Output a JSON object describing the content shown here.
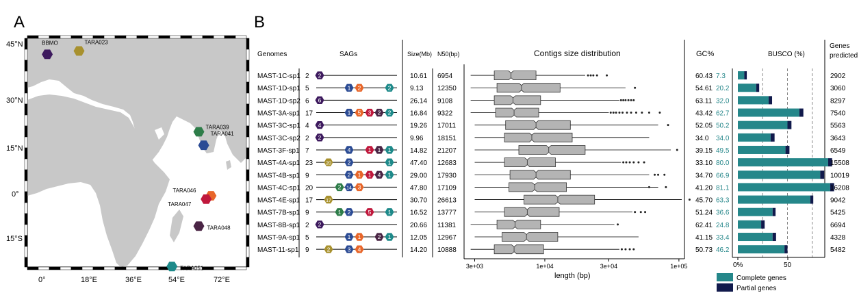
{
  "panels": {
    "a": "A",
    "b": "B"
  },
  "map": {
    "lat_labels": [
      "45°N",
      "30°N",
      "15°N",
      "0°",
      "15°S"
    ],
    "lon_labels": [
      "0°",
      "18°E",
      "36°E",
      "54°E",
      "72°E"
    ],
    "stations": [
      {
        "name": "BBMO",
        "lon": 2,
        "lat": 42,
        "color": "#3d1a5e"
      },
      {
        "name": "TARA023",
        "lon": 15,
        "lat": 43,
        "color": "#a8912e"
      },
      {
        "name": "TARA039",
        "lon": 64,
        "lat": 19,
        "color": "#2e7d49"
      },
      {
        "name": "TARA041",
        "lon": 66,
        "lat": 15,
        "color": "#2b4b94"
      },
      {
        "name": "TARA046",
        "lon": 69,
        "lat": 0,
        "color": "#e8662a"
      },
      {
        "name": "TARA047",
        "lon": 67,
        "lat": -1,
        "color": "#c0183c"
      },
      {
        "name": "TARA048",
        "lon": 64,
        "lat": -9,
        "color": "#4a2545"
      },
      {
        "name": "TARA051",
        "lon": 53,
        "lat": -21,
        "color": "#1e8a8a"
      }
    ]
  },
  "headers": {
    "genomes": "Genomes",
    "sags": "SAGs",
    "size": "Size(Mb)",
    "n50": "N50(bp)",
    "contigs": "Contigs size distribution",
    "gc": "GC%",
    "busco": "BUSCO (%)",
    "genes1": "Genes",
    "genes2": "predicted"
  },
  "axis": {
    "contig_ticks": [
      "3e+03",
      "1e+04",
      "3e+04",
      "1e+05"
    ],
    "contig_xlabel": "length  (bp)",
    "busco_ticks": [
      "0%",
      "50"
    ]
  },
  "legend": {
    "complete": "Complete genes",
    "partial": "Partial genes"
  },
  "colors": {
    "complete": "#25878a",
    "partial": "#111a4c",
    "box": "#b4b4b4"
  },
  "chart_data": {
    "type": "table",
    "columns": [
      "Genomes",
      "SAGs",
      "Size(Mb)",
      "N50(bp)",
      "Contigs size distribution",
      "GC%",
      "BUSCO (%)",
      "Genes predicted"
    ],
    "contig_axis": {
      "scale": "log",
      "range": [
        2500,
        110000
      ]
    },
    "busco_axis": {
      "range": [
        0,
        100
      ],
      "dashed_lines": [
        25,
        50,
        75
      ]
    },
    "rows": [
      {
        "genome": "MAST-1C-sp1",
        "n_sags": "2",
        "sags": [
          {
            "label": "2",
            "station": "BBMO"
          }
        ],
        "size": "10.61",
        "n50": "6954",
        "gc": "60.43",
        "busco": "7.3",
        "busco_complete": 6.5,
        "busco_partial": 2.5,
        "genes": "2902",
        "contigs": {
          "wlo": 2800,
          "q1": 4200,
          "med": 5600,
          "q3": 8600,
          "whi": 20000,
          "outliers": [
            21000,
            22000,
            23000,
            24500,
            29000
          ]
        }
      },
      {
        "genome": "MAST-1D-sp1",
        "n_sags": "5",
        "sags": [
          {
            "label": "1",
            "station": "TARA041"
          },
          {
            "label": "2",
            "station": "TARA046"
          },
          {
            "label": "2",
            "station": "TARA051"
          }
        ],
        "size": "9.13",
        "n50": "12350",
        "gc": "54.61",
        "busco": "20.2",
        "busco_complete": 18.5,
        "busco_partial": 3,
        "genes": "3060",
        "contigs": {
          "wlo": 2800,
          "q1": 4400,
          "med": 6700,
          "q3": 13000,
          "whi": 40000,
          "outliers": [
            47000
          ]
        }
      },
      {
        "genome": "MAST-1D-sp2",
        "n_sags": "6",
        "sags": [
          {
            "label": "6",
            "station": "BBMO"
          }
        ],
        "size": "26.14",
        "n50": "9108",
        "gc": "63.11",
        "busco": "32.0",
        "busco_complete": 31,
        "busco_partial": 3.5,
        "genes": "8297",
        "contigs": {
          "wlo": 2800,
          "q1": 4200,
          "med": 5800,
          "q3": 9300,
          "whi": 36000,
          "outliers": [
            37000,
            38500,
            40000,
            42000,
            44000,
            46000
          ]
        }
      },
      {
        "genome": "MAST-3A-sp1",
        "n_sags": "17",
        "sags": [
          {
            "label": "1",
            "station": "TARA041"
          },
          {
            "label": "5",
            "station": "TARA046"
          },
          {
            "label": "3",
            "station": "TARA047"
          },
          {
            "label": "2",
            "station": "TARA048"
          },
          {
            "label": "2",
            "station": "TARA051"
          }
        ],
        "size": "16.84",
        "n50": "9322",
        "gc": "43.42",
        "busco": "62.7",
        "busco_complete": 62,
        "busco_partial": 4,
        "genes": "7540",
        "contigs": {
          "wlo": 2800,
          "q1": 4300,
          "med": 5900,
          "q3": 9000,
          "whi": 30000,
          "outliers": [
            31000,
            32500,
            34000,
            36000,
            38000,
            41000,
            44000,
            48000,
            53000,
            60000,
            72000
          ]
        }
      },
      {
        "genome": "MAST-3C-sp1",
        "n_sags": "4",
        "sags": [
          {
            "label": "4",
            "station": "BBMO"
          }
        ],
        "size": "19.26",
        "n50": "17011",
        "gc": "52.05",
        "busco": "50.2",
        "busco_complete": 50,
        "busco_partial": 4,
        "genes": "5563",
        "contigs": {
          "wlo": 3000,
          "q1": 5100,
          "med": 8600,
          "q3": 15500,
          "whi": 70000,
          "outliers": [
            83000
          ]
        }
      },
      {
        "genome": "MAST-3C-sp2",
        "n_sags": "2",
        "sags": [
          {
            "label": "2",
            "station": "BBMO"
          }
        ],
        "size": "9.96",
        "n50": "18151",
        "gc": "34.0",
        "busco": "34.0",
        "busco_complete": 33,
        "busco_partial": 4,
        "genes": "3643",
        "contigs": {
          "wlo": 3000,
          "q1": 5000,
          "med": 8000,
          "q3": 16000,
          "whi": 60000,
          "outliers": []
        }
      },
      {
        "genome": "MAST-3F-sp1",
        "n_sags": "7",
        "sags": [
          {
            "label": "4",
            "station": "TARA041"
          },
          {
            "label": "1",
            "station": "TARA047"
          },
          {
            "label": "1",
            "station": "TARA048"
          },
          {
            "label": "1",
            "station": "TARA051"
          }
        ],
        "size": "14.82",
        "n50": "21207",
        "gc": "39.15",
        "busco": "49.5",
        "busco_complete": 48,
        "busco_partial": 4,
        "genes": "6549",
        "contigs": {
          "wlo": 3000,
          "q1": 6400,
          "med": 10700,
          "q3": 20000,
          "whi": 87000,
          "outliers": [
            97000
          ]
        }
      },
      {
        "genome": "MAST-4A-sp1",
        "n_sags": "23",
        "sags": [
          {
            "label": "20",
            "station": "TARA023"
          },
          {
            "label": "2",
            "station": "TARA041"
          },
          {
            "label": "1",
            "station": "TARA051"
          }
        ],
        "size": "47.40",
        "n50": "12683",
        "gc": "33.10",
        "busco": "80.0",
        "busco_complete": 91,
        "busco_partial": 4,
        "genes": "15508",
        "contigs": {
          "wlo": 3000,
          "q1": 5000,
          "med": 7400,
          "q3": 12000,
          "whi": 37000,
          "outliers": [
            38500,
            40500,
            43000,
            46000,
            50000,
            55000
          ]
        }
      },
      {
        "genome": "MAST-4B-sp1",
        "n_sags": "9",
        "sags": [
          {
            "label": "2",
            "station": "TARA041"
          },
          {
            "label": "1",
            "station": "TARA046"
          },
          {
            "label": "1",
            "station": "TARA047"
          },
          {
            "label": "4",
            "station": "TARA048"
          },
          {
            "label": "1",
            "station": "TARA051"
          }
        ],
        "size": "29.00",
        "n50": "17930",
        "gc": "34.70",
        "busco": "66.9",
        "busco_complete": 83,
        "busco_partial": 4,
        "genes": "10019",
        "contigs": {
          "wlo": 3000,
          "q1": 5500,
          "med": 8600,
          "q3": 15500,
          "whi": 60000,
          "outliers": [
            66000,
            70000,
            78000
          ]
        }
      },
      {
        "genome": "MAST-4C-sp1",
        "n_sags": "20",
        "sags": [
          {
            "label": "2",
            "station": "TARA039"
          },
          {
            "label": "14",
            "station": "TARA041"
          },
          {
            "label": "3",
            "station": "TARA046"
          }
        ],
        "size": "47.80",
        "n50": "17109",
        "gc": "41.20",
        "busco": "81.1",
        "busco_complete": 93,
        "busco_partial": 4,
        "genes": "16208",
        "contigs": {
          "wlo": 3000,
          "q1": 5400,
          "med": 8400,
          "q3": 14500,
          "whi": 70000,
          "outliers": [
            60000,
            80000
          ]
        }
      },
      {
        "genome": "MAST-4E-sp1",
        "n_sags": "17",
        "sags": [
          {
            "label": "17",
            "station": "TARA023"
          }
        ],
        "size": "30.70",
        "n50": "26613",
        "gc": "45.70",
        "busco": "63.3",
        "busco_complete": 73,
        "busco_partial": 3,
        "genes": "9042",
        "contigs": {
          "wlo": 3000,
          "q1": 7000,
          "med": 12500,
          "q3": 23500,
          "whi": 105000,
          "outliers": [
            120000
          ]
        }
      },
      {
        "genome": "MAST-7B-sp1",
        "n_sags": "9",
        "sags": [
          {
            "label": "1",
            "station": "TARA039"
          },
          {
            "label": "2",
            "station": "TARA041"
          },
          {
            "label": "5",
            "station": "TARA047"
          },
          {
            "label": "1",
            "station": "TARA051"
          }
        ],
        "size": "16.52",
        "n50": "13777",
        "gc": "51.24",
        "busco": "36.6",
        "busco_complete": 35,
        "busco_partial": 3,
        "genes": "5425",
        "contigs": {
          "wlo": 3000,
          "q1": 5000,
          "med": 7400,
          "q3": 12800,
          "whi": 45000,
          "outliers": [
            47000,
            52000,
            56000
          ]
        }
      },
      {
        "genome": "MAST-8B-sp1",
        "n_sags": "2",
        "sags": [
          {
            "label": "2",
            "station": "BBMO"
          }
        ],
        "size": "20.66",
        "n50": "11381",
        "gc": "62.41",
        "busco": "24.8",
        "busco_complete": 23.5,
        "busco_partial": 3.5,
        "genes": "6694",
        "contigs": {
          "wlo": 2800,
          "q1": 4400,
          "med": 6000,
          "q3": 9300,
          "whi": 33000,
          "outliers": [
            35000
          ]
        }
      },
      {
        "genome": "MAST-9A-sp1",
        "n_sags": "5",
        "sags": [
          {
            "label": "1",
            "station": "TARA041"
          },
          {
            "label": "1",
            "station": "TARA046"
          },
          {
            "label": "2",
            "station": "TARA048"
          },
          {
            "label": "1",
            "station": "TARA051"
          }
        ],
        "size": "12.05",
        "n50": "12967",
        "gc": "41.15",
        "busco": "33.4",
        "busco_complete": 35,
        "busco_partial": 3.5,
        "genes": "4328",
        "contigs": {
          "wlo": 3000,
          "q1": 4800,
          "med": 7300,
          "q3": 12500,
          "whi": 50000,
          "outliers": []
        }
      },
      {
        "genome": "MAST-11-sp1",
        "n_sags": "9",
        "sags": [
          {
            "label": "2",
            "station": "TARA023"
          },
          {
            "label": "3",
            "station": "TARA041"
          },
          {
            "label": "4",
            "station": "TARA046"
          }
        ],
        "size": "14.20",
        "n50": "10888",
        "gc": "50.73",
        "busco": "46.2",
        "busco_complete": 47,
        "busco_partial": 3,
        "genes": "5482",
        "contigs": {
          "wlo": 2800,
          "q1": 4200,
          "med": 5900,
          "q3": 9800,
          "whi": 36000,
          "outliers": [
            37500,
            40000,
            43000,
            46000
          ]
        }
      }
    ]
  }
}
